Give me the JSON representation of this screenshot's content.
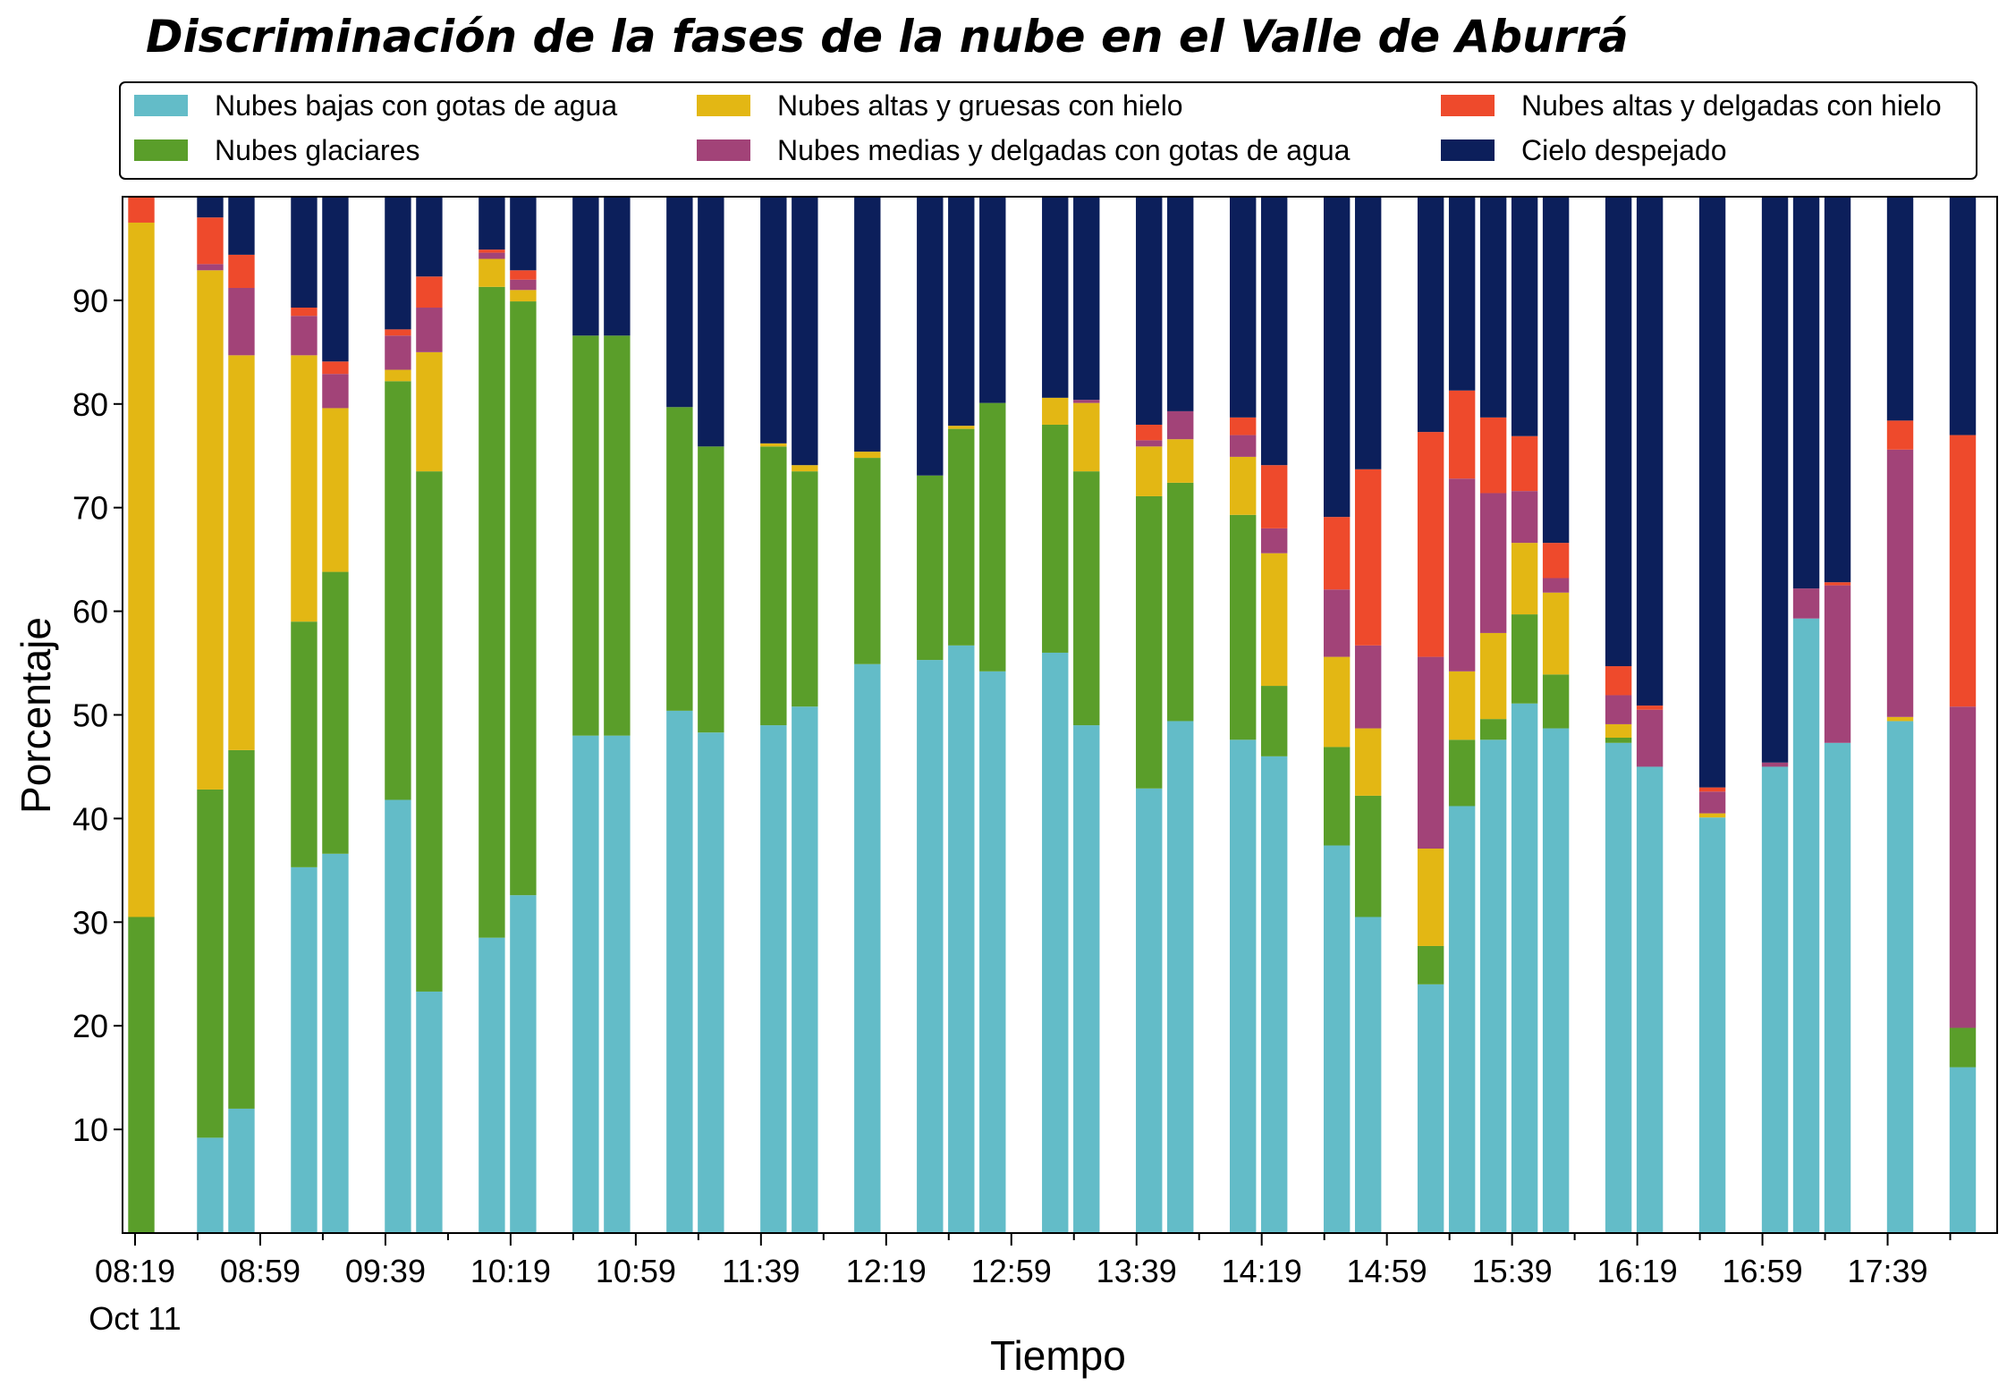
{
  "chart_data": {
    "type": "bar",
    "stacked": true,
    "title": "Discriminación de la fases de la nube en el Valle de Aburrá",
    "xlabel": "Tiempo",
    "ylabel": "Porcentaje",
    "ylim": [
      0,
      100
    ],
    "yticks": [
      10,
      20,
      30,
      40,
      50,
      60,
      70,
      80,
      90
    ],
    "xlim_minutes": [
      495,
      1094
    ],
    "x_tick_labels": [
      {
        "label": "08:19",
        "sublabel": "Oct 11",
        "minute": 499
      },
      {
        "label": "08:59",
        "sublabel": "",
        "minute": 539
      },
      {
        "label": "09:39",
        "sublabel": "",
        "minute": 579
      },
      {
        "label": "10:19",
        "sublabel": "",
        "minute": 619
      },
      {
        "label": "10:59",
        "sublabel": "",
        "minute": 659
      },
      {
        "label": "11:39",
        "sublabel": "",
        "minute": 699
      },
      {
        "label": "12:19",
        "sublabel": "",
        "minute": 739
      },
      {
        "label": "12:59",
        "sublabel": "",
        "minute": 779
      },
      {
        "label": "13:39",
        "sublabel": "",
        "minute": 819
      },
      {
        "label": "14:19",
        "sublabel": "",
        "minute": 859
      },
      {
        "label": "14:59",
        "sublabel": "",
        "minute": 899
      },
      {
        "label": "15:39",
        "sublabel": "",
        "minute": 939
      },
      {
        "label": "16:19",
        "sublabel": "",
        "minute": 979
      },
      {
        "label": "16:59",
        "sublabel": "",
        "minute": 1019
      },
      {
        "label": "17:39",
        "sublabel": "",
        "minute": 1059
      }
    ],
    "minor_tick_minutes": [
      519,
      559,
      599,
      639,
      679,
      719,
      759,
      799,
      839,
      879,
      919,
      959,
      999,
      1039,
      1079
    ],
    "grid": false,
    "legend_placement": "top",
    "series": [
      {
        "name": "Nubes bajas con gotas de agua",
        "color": "#63BCC8"
      },
      {
        "name": "Nubes glaciares",
        "color": "#5A9E2A"
      },
      {
        "name": "Nubes altas y gruesas con hielo",
        "color": "#E3B714"
      },
      {
        "name": "Nubes medias y delgadas con gotas de agua",
        "color": "#A24378"
      },
      {
        "name": "Nubes altas y delgadas con hielo",
        "color": "#EE4A2C"
      },
      {
        "name": "Cielo despejado",
        "color": "#0C1F5B"
      }
    ],
    "bars": [
      {
        "minute": 501,
        "values": [
          0,
          30.5,
          67,
          0,
          2.5,
          0
        ]
      },
      {
        "minute": 523,
        "values": [
          9.2,
          33.6,
          50.1,
          0.6,
          4.5,
          2
        ]
      },
      {
        "minute": 533,
        "values": [
          12,
          34.6,
          38.1,
          6.5,
          3.2,
          5.6
        ]
      },
      {
        "minute": 553,
        "values": [
          35.3,
          23.7,
          25.7,
          3.8,
          0.8,
          10.7
        ]
      },
      {
        "minute": 563,
        "values": [
          36.6,
          27.2,
          15.8,
          3.3,
          1.2,
          15.9
        ]
      },
      {
        "minute": 583,
        "values": [
          41.8,
          40.4,
          1.1,
          3.3,
          0.6,
          12.8
        ]
      },
      {
        "minute": 593,
        "values": [
          23.3,
          50.2,
          11.5,
          4.3,
          3,
          7.7
        ]
      },
      {
        "minute": 613,
        "values": [
          28.5,
          62.8,
          2.7,
          0.6,
          0.3,
          5.1
        ]
      },
      {
        "minute": 623,
        "values": [
          32.6,
          57.3,
          1.1,
          1,
          0.9,
          7.1
        ]
      },
      {
        "minute": 643,
        "values": [
          48,
          38.6,
          0,
          0,
          0,
          13.4
        ]
      },
      {
        "minute": 653,
        "values": [
          48,
          38.6,
          0,
          0,
          0,
          13.4
        ]
      },
      {
        "minute": 673,
        "values": [
          50.4,
          29.3,
          0,
          0,
          0,
          20.3
        ]
      },
      {
        "minute": 683,
        "values": [
          48.3,
          27.6,
          0,
          0,
          0,
          24.1
        ]
      },
      {
        "minute": 703,
        "values": [
          49,
          26.9,
          0.3,
          0,
          0,
          23.8
        ]
      },
      {
        "minute": 713,
        "values": [
          50.8,
          22.7,
          0.6,
          0,
          0,
          25.9
        ]
      },
      {
        "minute": 733,
        "values": [
          54.9,
          19.9,
          0.6,
          0,
          0,
          24.6
        ]
      },
      {
        "minute": 753,
        "values": [
          55.3,
          17.8,
          0,
          0,
          0,
          26.9
        ]
      },
      {
        "minute": 763,
        "values": [
          56.7,
          20.9,
          0.3,
          0,
          0,
          22.1
        ]
      },
      {
        "minute": 773,
        "values": [
          54.2,
          25.9,
          0,
          0,
          0,
          19.9
        ]
      },
      {
        "minute": 793,
        "values": [
          56,
          22,
          2.6,
          0,
          0,
          19.4
        ]
      },
      {
        "minute": 803,
        "values": [
          49,
          24.5,
          6.6,
          0.3,
          0,
          19.6
        ]
      },
      {
        "minute": 823,
        "values": [
          42.9,
          28.2,
          4.8,
          0.6,
          1.5,
          22
        ]
      },
      {
        "minute": 833,
        "values": [
          49.4,
          23,
          4.2,
          2.7,
          0,
          20.7
        ]
      },
      {
        "minute": 853,
        "values": [
          47.6,
          21.7,
          5.6,
          2.1,
          1.7,
          21.3
        ]
      },
      {
        "minute": 863,
        "values": [
          46,
          6.8,
          12.8,
          2.4,
          6.1,
          25.9
        ]
      },
      {
        "minute": 883,
        "values": [
          37.4,
          9.5,
          8.7,
          6.5,
          7,
          30.9
        ]
      },
      {
        "minute": 893,
        "values": [
          30.5,
          11.7,
          6.5,
          8,
          17,
          26.3
        ]
      },
      {
        "minute": 913,
        "values": [
          24,
          3.7,
          9.4,
          18.5,
          21.7,
          22.7
        ]
      },
      {
        "minute": 923,
        "values": [
          41.2,
          6.4,
          6.6,
          18.6,
          8.5,
          18.7
        ]
      },
      {
        "minute": 933,
        "values": [
          47.6,
          2,
          8.3,
          13.5,
          7.3,
          21.3
        ]
      },
      {
        "minute": 943,
        "values": [
          51.1,
          8.6,
          6.9,
          5,
          5.3,
          23.1
        ]
      },
      {
        "minute": 953,
        "values": [
          48.7,
          5.2,
          7.9,
          1.4,
          3.4,
          33.4
        ]
      },
      {
        "minute": 973,
        "values": [
          47.3,
          0.5,
          1.3,
          2.8,
          2.8,
          45.3
        ]
      },
      {
        "minute": 983,
        "values": [
          45,
          0,
          0,
          5.5,
          0.4,
          49.1
        ]
      },
      {
        "minute": 1003,
        "values": [
          40.1,
          0,
          0.4,
          2.1,
          0.4,
          57
        ]
      },
      {
        "minute": 1023,
        "values": [
          45,
          0,
          0,
          0.4,
          0,
          54.6
        ]
      },
      {
        "minute": 1033,
        "values": [
          59.3,
          0,
          0,
          2.9,
          0,
          37.8
        ]
      },
      {
        "minute": 1043,
        "values": [
          47.3,
          0,
          0,
          15.2,
          0.3,
          37.2
        ]
      },
      {
        "minute": 1063,
        "values": [
          49.4,
          0,
          0.4,
          25.8,
          2.8,
          21.6
        ]
      },
      {
        "minute": 1083,
        "values": [
          16,
          3.8,
          0,
          31,
          26.2,
          23
        ]
      }
    ]
  }
}
